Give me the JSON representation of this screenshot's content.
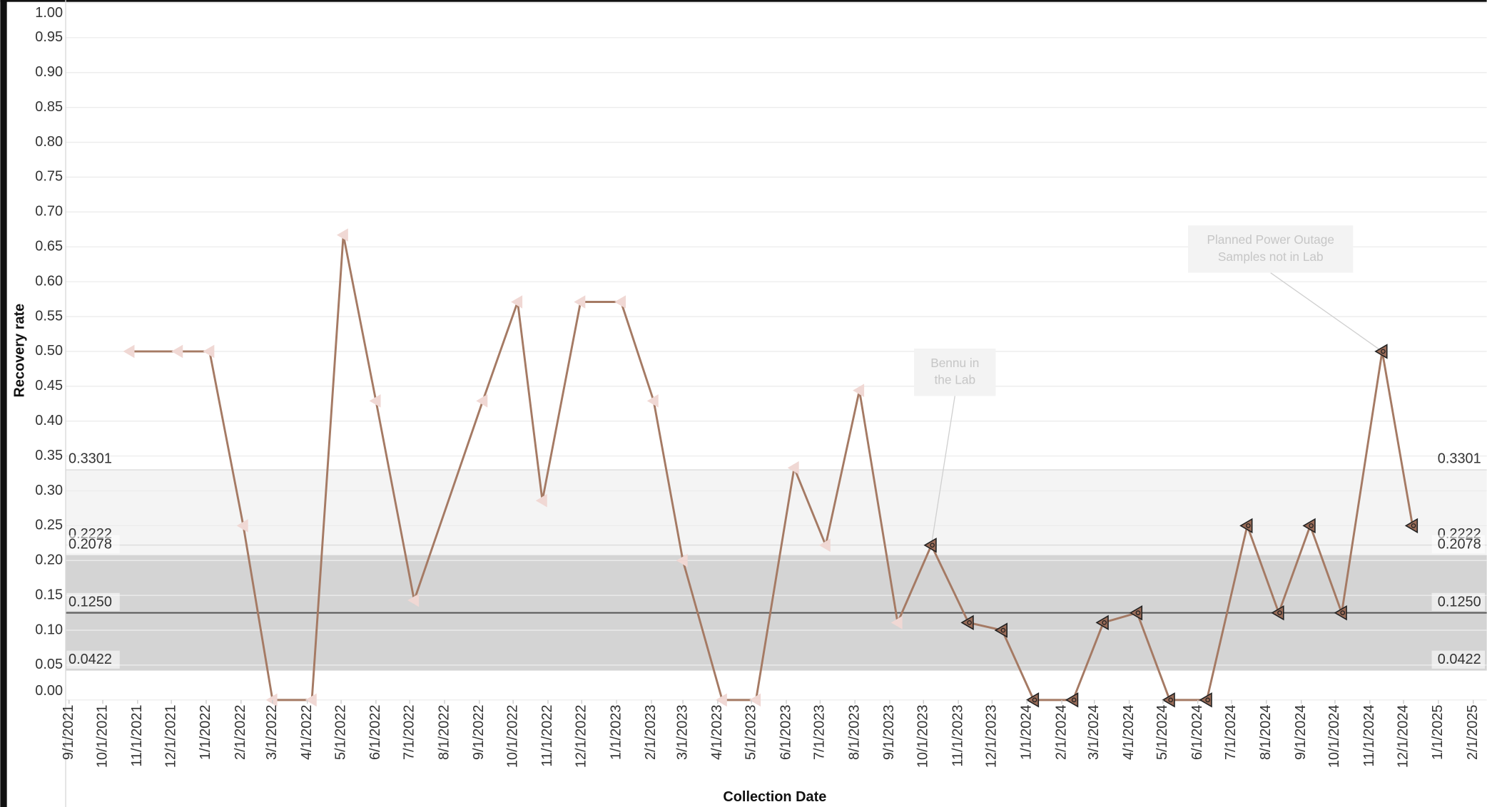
{
  "chart_data": {
    "type": "line",
    "x_label": "Collection Date",
    "y_label": "Recovery rate",
    "xlim": [
      "2021-08-29",
      "2025-02-13"
    ],
    "xticks": [
      {
        "value": "2021-09-01",
        "label": "9/1/2021"
      },
      {
        "value": "2021-10-01",
        "label": "10/1/2021"
      },
      {
        "value": "2021-11-01",
        "label": "11/1/2021"
      },
      {
        "value": "2021-12-01",
        "label": "12/1/2021"
      },
      {
        "value": "2022-01-01",
        "label": "1/1/2022"
      },
      {
        "value": "2022-02-01",
        "label": "2/1/2022"
      },
      {
        "value": "2022-03-01",
        "label": "3/1/2022"
      },
      {
        "value": "2022-04-01",
        "label": "4/1/2022"
      },
      {
        "value": "2022-05-01",
        "label": "5/1/2022"
      },
      {
        "value": "2022-06-01",
        "label": "6/1/2022"
      },
      {
        "value": "2022-07-01",
        "label": "7/1/2022"
      },
      {
        "value": "2022-08-01",
        "label": "8/1/2022"
      },
      {
        "value": "2022-09-01",
        "label": "9/1/2022"
      },
      {
        "value": "2022-10-01",
        "label": "10/1/2022"
      },
      {
        "value": "2022-11-01",
        "label": "11/1/2022"
      },
      {
        "value": "2022-12-01",
        "label": "12/1/2022"
      },
      {
        "value": "2023-01-01",
        "label": "1/1/2023"
      },
      {
        "value": "2023-02-01",
        "label": "2/1/2023"
      },
      {
        "value": "2023-03-01",
        "label": "3/1/2023"
      },
      {
        "value": "2023-04-01",
        "label": "4/1/2023"
      },
      {
        "value": "2023-05-01",
        "label": "5/1/2023"
      },
      {
        "value": "2023-06-01",
        "label": "6/1/2023"
      },
      {
        "value": "2023-07-01",
        "label": "7/1/2023"
      },
      {
        "value": "2023-08-01",
        "label": "8/1/2023"
      },
      {
        "value": "2023-09-01",
        "label": "9/1/2023"
      },
      {
        "value": "2023-10-01",
        "label": "10/1/2023"
      },
      {
        "value": "2023-11-01",
        "label": "11/1/2023"
      },
      {
        "value": "2023-12-01",
        "label": "12/1/2023"
      },
      {
        "value": "2024-01-01",
        "label": "1/1/2024"
      },
      {
        "value": "2024-02-01",
        "label": "2/1/2024"
      },
      {
        "value": "2024-03-01",
        "label": "3/1/2024"
      },
      {
        "value": "2024-04-01",
        "label": "4/1/2024"
      },
      {
        "value": "2024-05-01",
        "label": "5/1/2024"
      },
      {
        "value": "2024-06-01",
        "label": "6/1/2024"
      },
      {
        "value": "2024-07-01",
        "label": "7/1/2024"
      },
      {
        "value": "2024-08-01",
        "label": "8/1/2024"
      },
      {
        "value": "2024-09-01",
        "label": "9/1/2024"
      },
      {
        "value": "2024-10-01",
        "label": "10/1/2024"
      },
      {
        "value": "2024-11-01",
        "label": "11/1/2024"
      },
      {
        "value": "2024-12-01",
        "label": "12/1/2024"
      },
      {
        "value": "2025-01-01",
        "label": "1/1/2025"
      },
      {
        "value": "2025-02-01",
        "label": "2/1/2025"
      }
    ],
    "ylim": [
      0,
      1.0
    ],
    "yticks": [
      {
        "value": 0,
        "label": "0.00"
      },
      {
        "value": 0.05,
        "label": "0.05"
      },
      {
        "value": 0.1,
        "label": "0.10"
      },
      {
        "value": 0.15,
        "label": "0.15"
      },
      {
        "value": 0.2,
        "label": "0.20"
      },
      {
        "value": 0.25,
        "label": "0.25"
      },
      {
        "value": 0.3,
        "label": "0.30"
      },
      {
        "value": 0.35,
        "label": "0.35"
      },
      {
        "value": 0.4,
        "label": "0.40"
      },
      {
        "value": 0.45,
        "label": "0.45"
      },
      {
        "value": 0.5,
        "label": "0.50"
      },
      {
        "value": 0.55,
        "label": "0.55"
      },
      {
        "value": 0.6,
        "label": "0.60"
      },
      {
        "value": 0.65,
        "label": "0.65"
      },
      {
        "value": 0.7,
        "label": "0.70"
      },
      {
        "value": 0.75,
        "label": "0.75"
      },
      {
        "value": 0.8,
        "label": "0.80"
      },
      {
        "value": 0.85,
        "label": "0.85"
      },
      {
        "value": 0.9,
        "label": "0.90"
      },
      {
        "value": 0.95,
        "label": "0.95"
      },
      {
        "value": 1.0,
        "label": "1.00"
      }
    ],
    "grid": true,
    "bands": [
      {
        "from": 0.3301,
        "to": 0.0422,
        "color": "#f4f4f4"
      },
      {
        "from": 0.2078,
        "to": 0.0422,
        "color": "#d4d4d4"
      }
    ],
    "reference_lines": [
      {
        "value": 0.3301,
        "label": "0.3301",
        "color": "#c8c8c8"
      },
      {
        "value": 0.2222,
        "label": "0.2222",
        "color": "#e2e2e2"
      },
      {
        "value": 0.2078,
        "label": "0.2078",
        "color": "#333333"
      },
      {
        "value": 0.125,
        "label": "0.1250",
        "color": "#333333"
      },
      {
        "value": 0.0422,
        "label": "0.0422",
        "color": "#333333"
      }
    ],
    "x": [
      "2021-10-25",
      "2021-12-07",
      "2022-01-04",
      "2022-02-03",
      "2022-03-01",
      "2022-04-05",
      "2022-05-03",
      "2022-06-01",
      "2022-07-05",
      "2022-09-04",
      "2022-10-05",
      "2022-10-27",
      "2022-11-30",
      "2023-01-05",
      "2023-02-03",
      "2023-03-01",
      "2023-04-05",
      "2023-05-05",
      "2023-06-08",
      "2023-07-06",
      "2023-08-05",
      "2023-09-08",
      "2023-10-08",
      "2023-11-10",
      "2023-12-10",
      "2024-01-07",
      "2024-02-11",
      "2024-03-09",
      "2024-04-08",
      "2024-05-07",
      "2024-06-09",
      "2024-07-15",
      "2024-08-12",
      "2024-09-09",
      "2024-10-07",
      "2024-11-12",
      "2024-12-09"
    ],
    "series": [
      {
        "name": "Recovery rate",
        "color": "#a57a64",
        "values": [
          0.5,
          0.5,
          0.5,
          0.25,
          0,
          0,
          0.667,
          0.429,
          0.143,
          0.429,
          0.571,
          0.286,
          0.571,
          0.571,
          0.429,
          0.2,
          0,
          0,
          0.333,
          0.222,
          0.444,
          0.111,
          0.222,
          0.111,
          0.1,
          0,
          0,
          0.111,
          0.125,
          0,
          0,
          0.25,
          0.125,
          0.25,
          0.125,
          0.5,
          0.25
        ],
        "marker_colors": [
          "#f0d8d4",
          "#f0d8d4",
          "#f0d8d4",
          "#f0d8d4",
          "#f0d8d4",
          "#f0d8d4",
          "#f0d8d4",
          "#f0d8d4",
          "#f0d8d4",
          "#f0d8d4",
          "#f0d8d4",
          "#f0d8d4",
          "#f0d8d4",
          "#f0d8d4",
          "#f0d8d4",
          "#f0d8d4",
          "#f0d8d4",
          "#f0d8d4",
          "#f0d8d4",
          "#f0d8d4",
          "#f0d8d4",
          "#f0d8d4",
          "#9a6c58",
          "#9a6c58",
          "#9a6c58",
          "#9a6c58",
          "#9a6c58",
          "#9a6c58",
          "#9a6c58",
          "#9a6c58",
          "#9a6c58",
          "#9a6c58",
          "#9a6c58",
          "#9a6c58",
          "#9a6c58",
          "#9a6c58",
          "#9a6c58"
        ]
      }
    ],
    "annotations": [
      {
        "lines": [
          "Bennu in",
          "the Lab"
        ]
      },
      {
        "lines": [
          "Planned Power Outage",
          "Samples not in Lab"
        ]
      }
    ]
  }
}
